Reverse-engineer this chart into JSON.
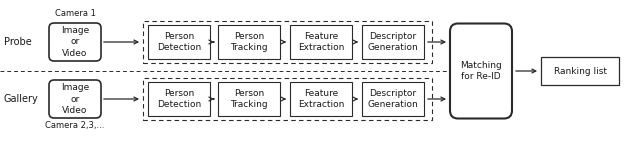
{
  "bg_color": "#ffffff",
  "text_color": "#1a1a1a",
  "box_edge_color": "#2a2a2a",
  "dashed_box_color": "#2a2a2a",
  "arrow_color": "#2a2a2a",
  "fig_width": 6.4,
  "fig_height": 1.54,
  "probe_label": "Probe",
  "gallery_label": "Gallery",
  "camera1_label": "Camera 1",
  "camera23_label": "Camera 2,3,...",
  "image_video_label": "Image\nor\nVideo",
  "pipeline_boxes": [
    "Person\nDetection",
    "Person\nTracking",
    "Feature\nExtraction",
    "Descriptor\nGeneration"
  ],
  "matching_label": "Matching\nfor Re-ID",
  "ranking_label": "Ranking list",
  "font_size_main": 6.5,
  "font_size_label": 7,
  "font_size_small": 6.0
}
